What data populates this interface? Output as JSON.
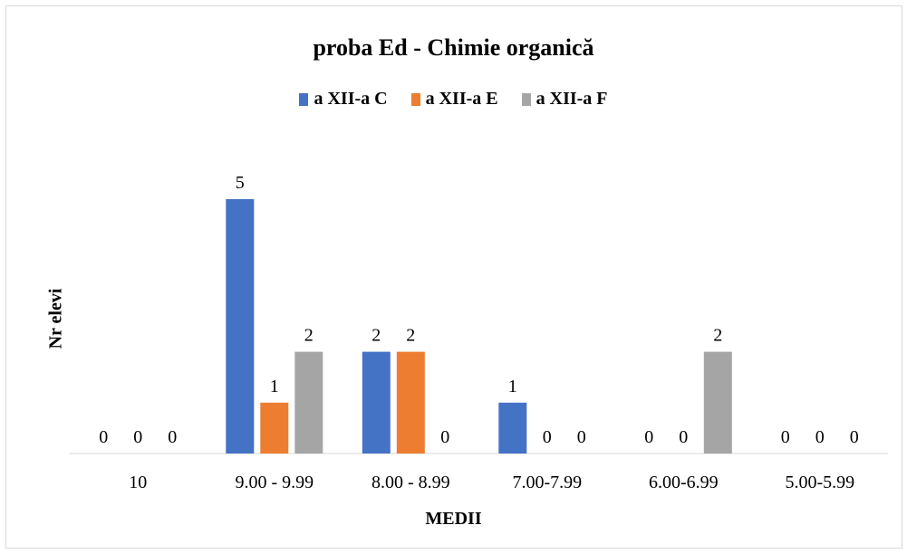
{
  "chart_data": {
    "type": "bar",
    "title": "proba Ed - Chimie organică",
    "xlabel": "MEDII",
    "ylabel": "Nr elevi",
    "categories": [
      "10",
      "9.00 - 9.99",
      "8.00 - 8.99",
      "7.00-7.99",
      "6.00-6.99",
      "5.00-5.99"
    ],
    "series": [
      {
        "name": "a XII-a C",
        "color": "#4472C4",
        "values": [
          0,
          5,
          2,
          1,
          0,
          0
        ]
      },
      {
        "name": "a XII-a E",
        "color": "#ED7D31",
        "values": [
          0,
          1,
          2,
          0,
          0,
          0
        ]
      },
      {
        "name": "a XII-a F",
        "color": "#A5A5A5",
        "values": [
          0,
          2,
          0,
          0,
          2,
          0
        ]
      }
    ],
    "ylim": [
      0,
      5
    ],
    "grid": false,
    "legend_position": "top"
  }
}
